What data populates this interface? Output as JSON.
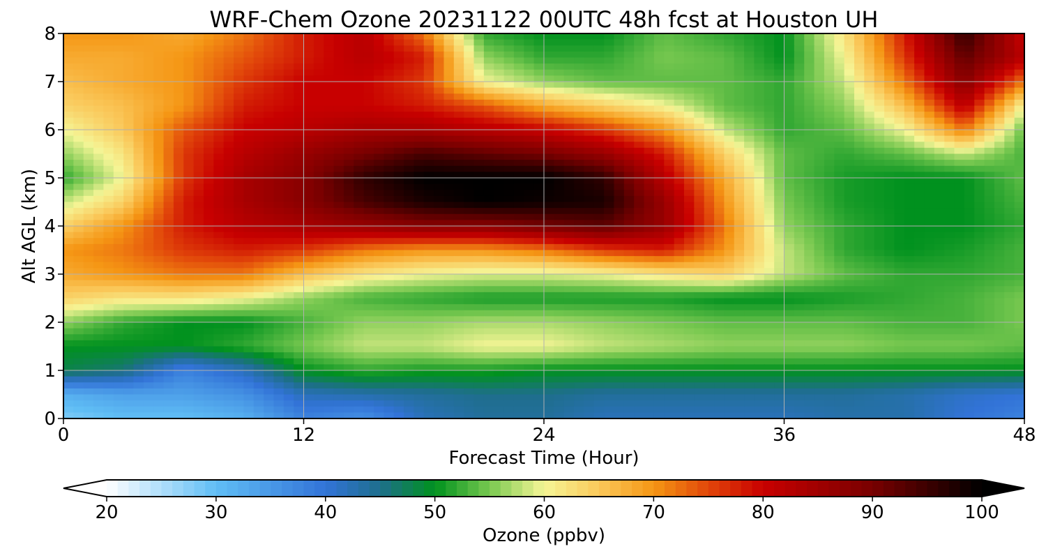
{
  "chart_data": {
    "type": "heatmap",
    "title": "WRF-Chem Ozone  20231122 00UTC 48h fcst at Houston UH",
    "xlabel": "Forecast Time (Hour)",
    "ylabel": "Alt AGL (km)",
    "xlim": [
      0,
      48
    ],
    "ylim": [
      0,
      8
    ],
    "xticks": [
      "0",
      "12",
      "24",
      "36",
      "48"
    ],
    "yticks": [
      "0",
      "1",
      "2",
      "3",
      "4",
      "5",
      "6",
      "7",
      "8"
    ],
    "grid": true,
    "x_hours": [
      0,
      3,
      6,
      9,
      12,
      15,
      18,
      21,
      24,
      27,
      30,
      33,
      36,
      39,
      42,
      45,
      48
    ],
    "y_km": [
      0,
      0.5,
      1,
      1.5,
      2,
      2.5,
      3,
      3.5,
      4,
      4.5,
      5,
      5.5,
      6,
      6.5,
      7,
      7.5,
      8
    ],
    "ozone_ppbv": [
      [
        28,
        30,
        30,
        32,
        38,
        36,
        42,
        44,
        44,
        42,
        42,
        42,
        42,
        43,
        43,
        40,
        38
      ],
      [
        32,
        34,
        34,
        36,
        42,
        43,
        44,
        45,
        45,
        44,
        44,
        44,
        44,
        44,
        43,
        41,
        40
      ],
      [
        48,
        46,
        38,
        42,
        50,
        52,
        51,
        51,
        50,
        50,
        50,
        50,
        50,
        50,
        50,
        50,
        50
      ],
      [
        50,
        50,
        50,
        52,
        55,
        58,
        58,
        60,
        60,
        58,
        57,
        56,
        56,
        56,
        55,
        55,
        54
      ],
      [
        56,
        52,
        50,
        50,
        53,
        56,
        56,
        57,
        57,
        56,
        55,
        54,
        54,
        54,
        53,
        53,
        55
      ],
      [
        64,
        62,
        62,
        60,
        56,
        53,
        52,
        51,
        51,
        51,
        51,
        50,
        50,
        51,
        52,
        53,
        55
      ],
      [
        68,
        70,
        72,
        72,
        66,
        62,
        60,
        59,
        59,
        60,
        62,
        64,
        58,
        54,
        52,
        52,
        53
      ],
      [
        70,
        72,
        76,
        78,
        76,
        72,
        70,
        70,
        72,
        76,
        78,
        70,
        58,
        52,
        50,
        51,
        53
      ],
      [
        64,
        70,
        78,
        82,
        84,
        86,
        88,
        88,
        90,
        92,
        86,
        72,
        56,
        52,
        50,
        50,
        52
      ],
      [
        58,
        64,
        78,
        84,
        88,
        94,
        98,
        100,
        99,
        98,
        86,
        70,
        55,
        51,
        50,
        50,
        53
      ],
      [
        52,
        60,
        76,
        84,
        88,
        96,
        100,
        100,
        100,
        96,
        82,
        68,
        54,
        51,
        50,
        50,
        54
      ],
      [
        56,
        62,
        76,
        82,
        86,
        90,
        94,
        92,
        90,
        86,
        78,
        64,
        54,
        52,
        54,
        58,
        53
      ],
      [
        60,
        65,
        74,
        80,
        82,
        84,
        84,
        82,
        80,
        76,
        70,
        58,
        52,
        54,
        60,
        72,
        54
      ],
      [
        64,
        66,
        70,
        78,
        80,
        80,
        78,
        74,
        68,
        64,
        60,
        54,
        52,
        56,
        66,
        82,
        60
      ],
      [
        66,
        68,
        70,
        76,
        80,
        80,
        76,
        60,
        56,
        54,
        54,
        54,
        52,
        58,
        72,
        88,
        72
      ],
      [
        68,
        68,
        70,
        74,
        78,
        82,
        78,
        56,
        52,
        52,
        55,
        54,
        50,
        60,
        76,
        92,
        82
      ],
      [
        70,
        70,
        68,
        72,
        78,
        82,
        72,
        52,
        50,
        50,
        54,
        52,
        50,
        62,
        78,
        96,
        80
      ]
    ],
    "colorbar": {
      "label": "Ozone  (ppbv)",
      "ticks": [
        "20",
        "30",
        "40",
        "50",
        "60",
        "70",
        "80",
        "90",
        "100"
      ],
      "min": 20,
      "max": 100,
      "extend": "both"
    }
  }
}
